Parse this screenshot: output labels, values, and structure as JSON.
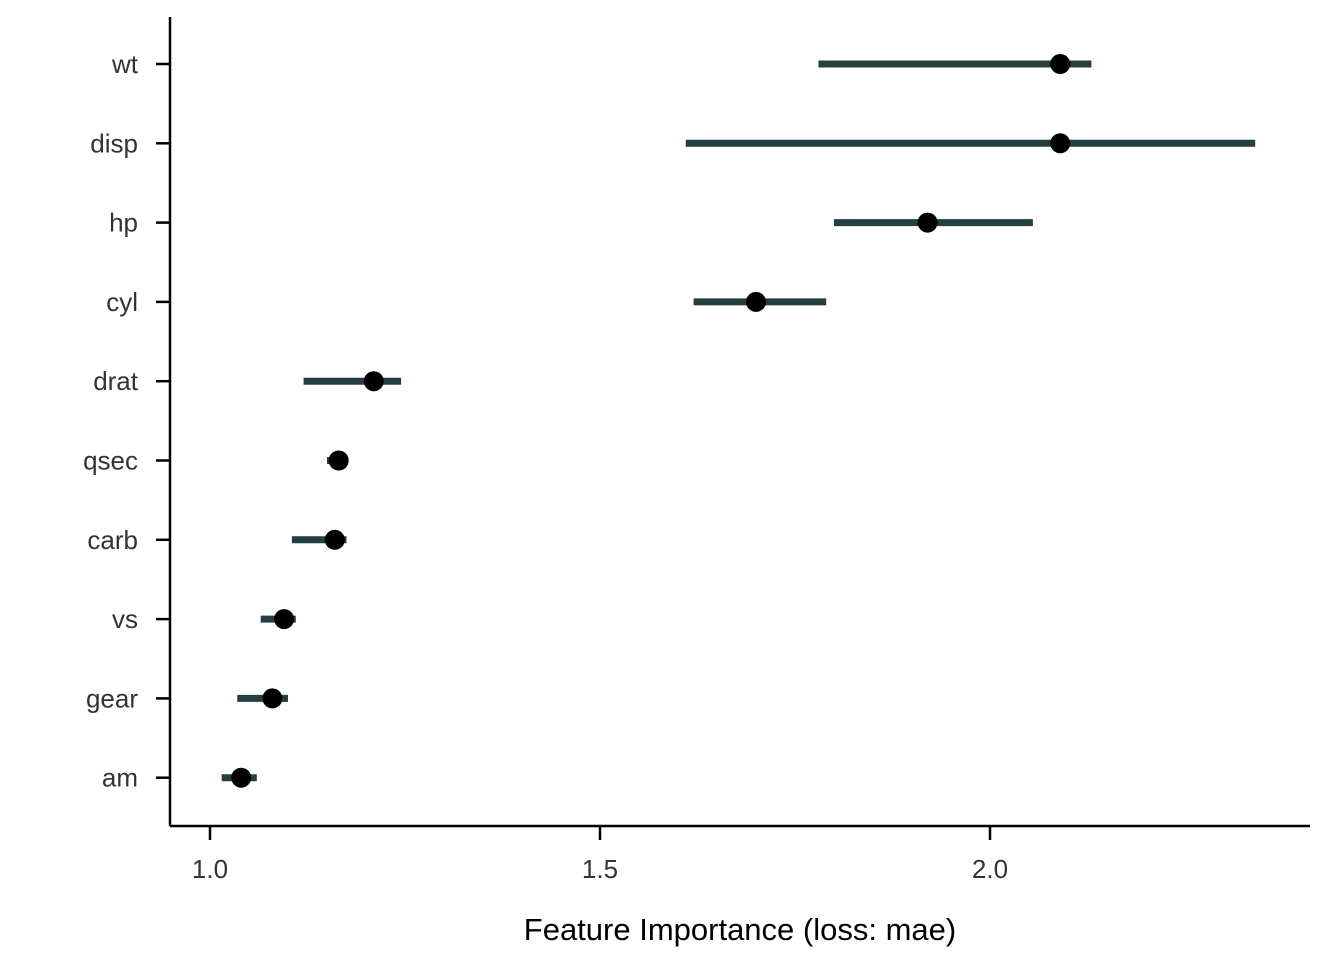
{
  "chart_data": {
    "type": "dot-interval",
    "title": "",
    "xlabel": "Feature Importance (loss: mae)",
    "ylabel": "",
    "xlim": [
      0.95,
      2.41
    ],
    "x_ticks": [
      1.0,
      1.5,
      2.0
    ],
    "x_tick_labels": [
      "1.0",
      "1.5",
      "2.0"
    ],
    "grid": false,
    "legend": "none",
    "interval_color": "#233f42",
    "point_color": "#000000",
    "series": [
      {
        "categories": [
          "wt",
          "disp",
          "hp",
          "cyl",
          "drat",
          "qsec",
          "carb",
          "vs",
          "gear",
          "am"
        ],
        "values": [
          2.09,
          2.09,
          1.92,
          1.7,
          1.21,
          1.165,
          1.16,
          1.095,
          1.08,
          1.04
        ],
        "lower": [
          1.78,
          1.61,
          1.8,
          1.62,
          1.12,
          1.15,
          1.105,
          1.065,
          1.035,
          1.015
        ],
        "upper": [
          2.13,
          2.34,
          2.055,
          1.79,
          1.245,
          1.175,
          1.175,
          1.11,
          1.1,
          1.06
        ]
      }
    ]
  }
}
